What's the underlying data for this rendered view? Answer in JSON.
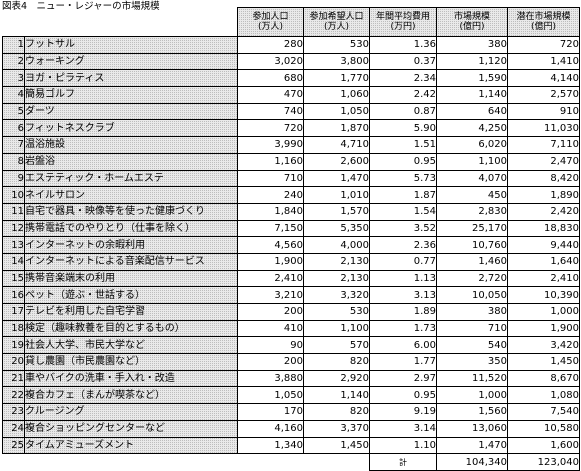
{
  "title": "図表4　ニュー・レジャーの市場規模",
  "headers": [
    {
      "line1": "参加人口",
      "line2": "(万人)"
    },
    {
      "line1": "参加希望人口",
      "line2": "(万人)"
    },
    {
      "line1": "年間平均費用",
      "line2": "(万円)"
    },
    {
      "line1": "市場規模",
      "line2": "(億円)"
    },
    {
      "line1": "潜在市場規模",
      "line2": "(億円)"
    }
  ],
  "rows": [
    {
      "no": "1",
      "name": "フットサル",
      "participants": "280",
      "wish": "530",
      "cost": "1.36",
      "market": "380",
      "potential": "720"
    },
    {
      "no": "2",
      "name": "ウォーキング",
      "participants": "3,020",
      "wish": "3,800",
      "cost": "0.37",
      "market": "1,120",
      "potential": "1,410"
    },
    {
      "no": "3",
      "name": "ヨガ・ピラティス",
      "participants": "680",
      "wish": "1,770",
      "cost": "2.34",
      "market": "1,590",
      "potential": "4,140"
    },
    {
      "no": "4",
      "name": "簡易ゴルフ",
      "participants": "470",
      "wish": "1,060",
      "cost": "2.42",
      "market": "1,140",
      "potential": "2,570"
    },
    {
      "no": "5",
      "name": "ダーツ",
      "participants": "740",
      "wish": "1,050",
      "cost": "0.87",
      "market": "640",
      "potential": "910"
    },
    {
      "no": "6",
      "name": "フィットネスクラブ",
      "participants": "720",
      "wish": "1,870",
      "cost": "5.90",
      "market": "4,250",
      "potential": "11,030"
    },
    {
      "no": "7",
      "name": "温浴施設",
      "participants": "3,990",
      "wish": "4,710",
      "cost": "1.51",
      "market": "6,020",
      "potential": "7,110"
    },
    {
      "no": "8",
      "name": "岩盤浴",
      "participants": "1,160",
      "wish": "2,600",
      "cost": "0.95",
      "market": "1,100",
      "potential": "2,470"
    },
    {
      "no": "9",
      "name": "エステティック・ホームエステ",
      "participants": "710",
      "wish": "1,470",
      "cost": "5.73",
      "market": "4,070",
      "potential": "8,420"
    },
    {
      "no": "10",
      "name": "ネイルサロン",
      "participants": "240",
      "wish": "1,010",
      "cost": "1.87",
      "market": "450",
      "potential": "1,890"
    },
    {
      "no": "11",
      "name": "自宅で器具・映像等を使った健康づくり",
      "participants": "1,840",
      "wish": "1,570",
      "cost": "1.54",
      "market": "2,830",
      "potential": "2,420"
    },
    {
      "no": "12",
      "name": "携帯電話でのやりとり（仕事を除く）",
      "participants": "7,150",
      "wish": "5,350",
      "cost": "3.52",
      "market": "25,170",
      "potential": "18,830"
    },
    {
      "no": "13",
      "name": "インターネットの余暇利用",
      "participants": "4,560",
      "wish": "4,000",
      "cost": "2.36",
      "market": "10,760",
      "potential": "9,440"
    },
    {
      "no": "14",
      "name": "インターネットによる音楽配信サービス",
      "participants": "1,900",
      "wish": "2,130",
      "cost": "0.77",
      "market": "1,460",
      "potential": "1,640"
    },
    {
      "no": "15",
      "name": "携帯音楽端末の利用",
      "participants": "2,410",
      "wish": "2,130",
      "cost": "1.13",
      "market": "2,720",
      "potential": "2,410"
    },
    {
      "no": "16",
      "name": "ペット（遊ぶ・世話する）",
      "participants": "3,210",
      "wish": "3,320",
      "cost": "3.13",
      "market": "10,050",
      "potential": "10,390"
    },
    {
      "no": "17",
      "name": "テレビを利用した自宅学習",
      "participants": "200",
      "wish": "530",
      "cost": "1.89",
      "market": "380",
      "potential": "1,000"
    },
    {
      "no": "18",
      "name": "検定（趣味教養を目的とするもの）",
      "participants": "410",
      "wish": "1,100",
      "cost": "1.73",
      "market": "710",
      "potential": "1,900"
    },
    {
      "no": "19",
      "name": "社会人大学、市民大学など",
      "participants": "90",
      "wish": "570",
      "cost": "6.00",
      "market": "540",
      "potential": "3,420"
    },
    {
      "no": "20",
      "name": "貸し農園（市民農園など）",
      "participants": "200",
      "wish": "820",
      "cost": "1.77",
      "market": "350",
      "potential": "1,450"
    },
    {
      "no": "21",
      "name": "車やバイクの洗車・手入れ・改造",
      "participants": "3,880",
      "wish": "2,920",
      "cost": "2.97",
      "market": "11,520",
      "potential": "8,670"
    },
    {
      "no": "22",
      "name": "複合カフェ（まんが喫茶など）",
      "participants": "1,050",
      "wish": "1,140",
      "cost": "0.95",
      "market": "1,000",
      "potential": "1,080"
    },
    {
      "no": "23",
      "name": "クルージング",
      "participants": "170",
      "wish": "820",
      "cost": "9.19",
      "market": "1,560",
      "potential": "7,540"
    },
    {
      "no": "24",
      "name": "複合ショッピングセンターなど",
      "participants": "4,160",
      "wish": "3,370",
      "cost": "3.14",
      "market": "13,060",
      "potential": "10,580"
    },
    {
      "no": "25",
      "name": "タイムアミューズメント",
      "participants": "1,340",
      "wish": "1,450",
      "cost": "1.10",
      "market": "1,470",
      "potential": "1,600"
    }
  ],
  "total": {
    "label": "計",
    "market": "104,340",
    "potential": "123,040"
  },
  "colors": {
    "stipple_bg": "#e9e9e9",
    "stipple_dot": "#bdbdbd",
    "border": "#000000"
  }
}
